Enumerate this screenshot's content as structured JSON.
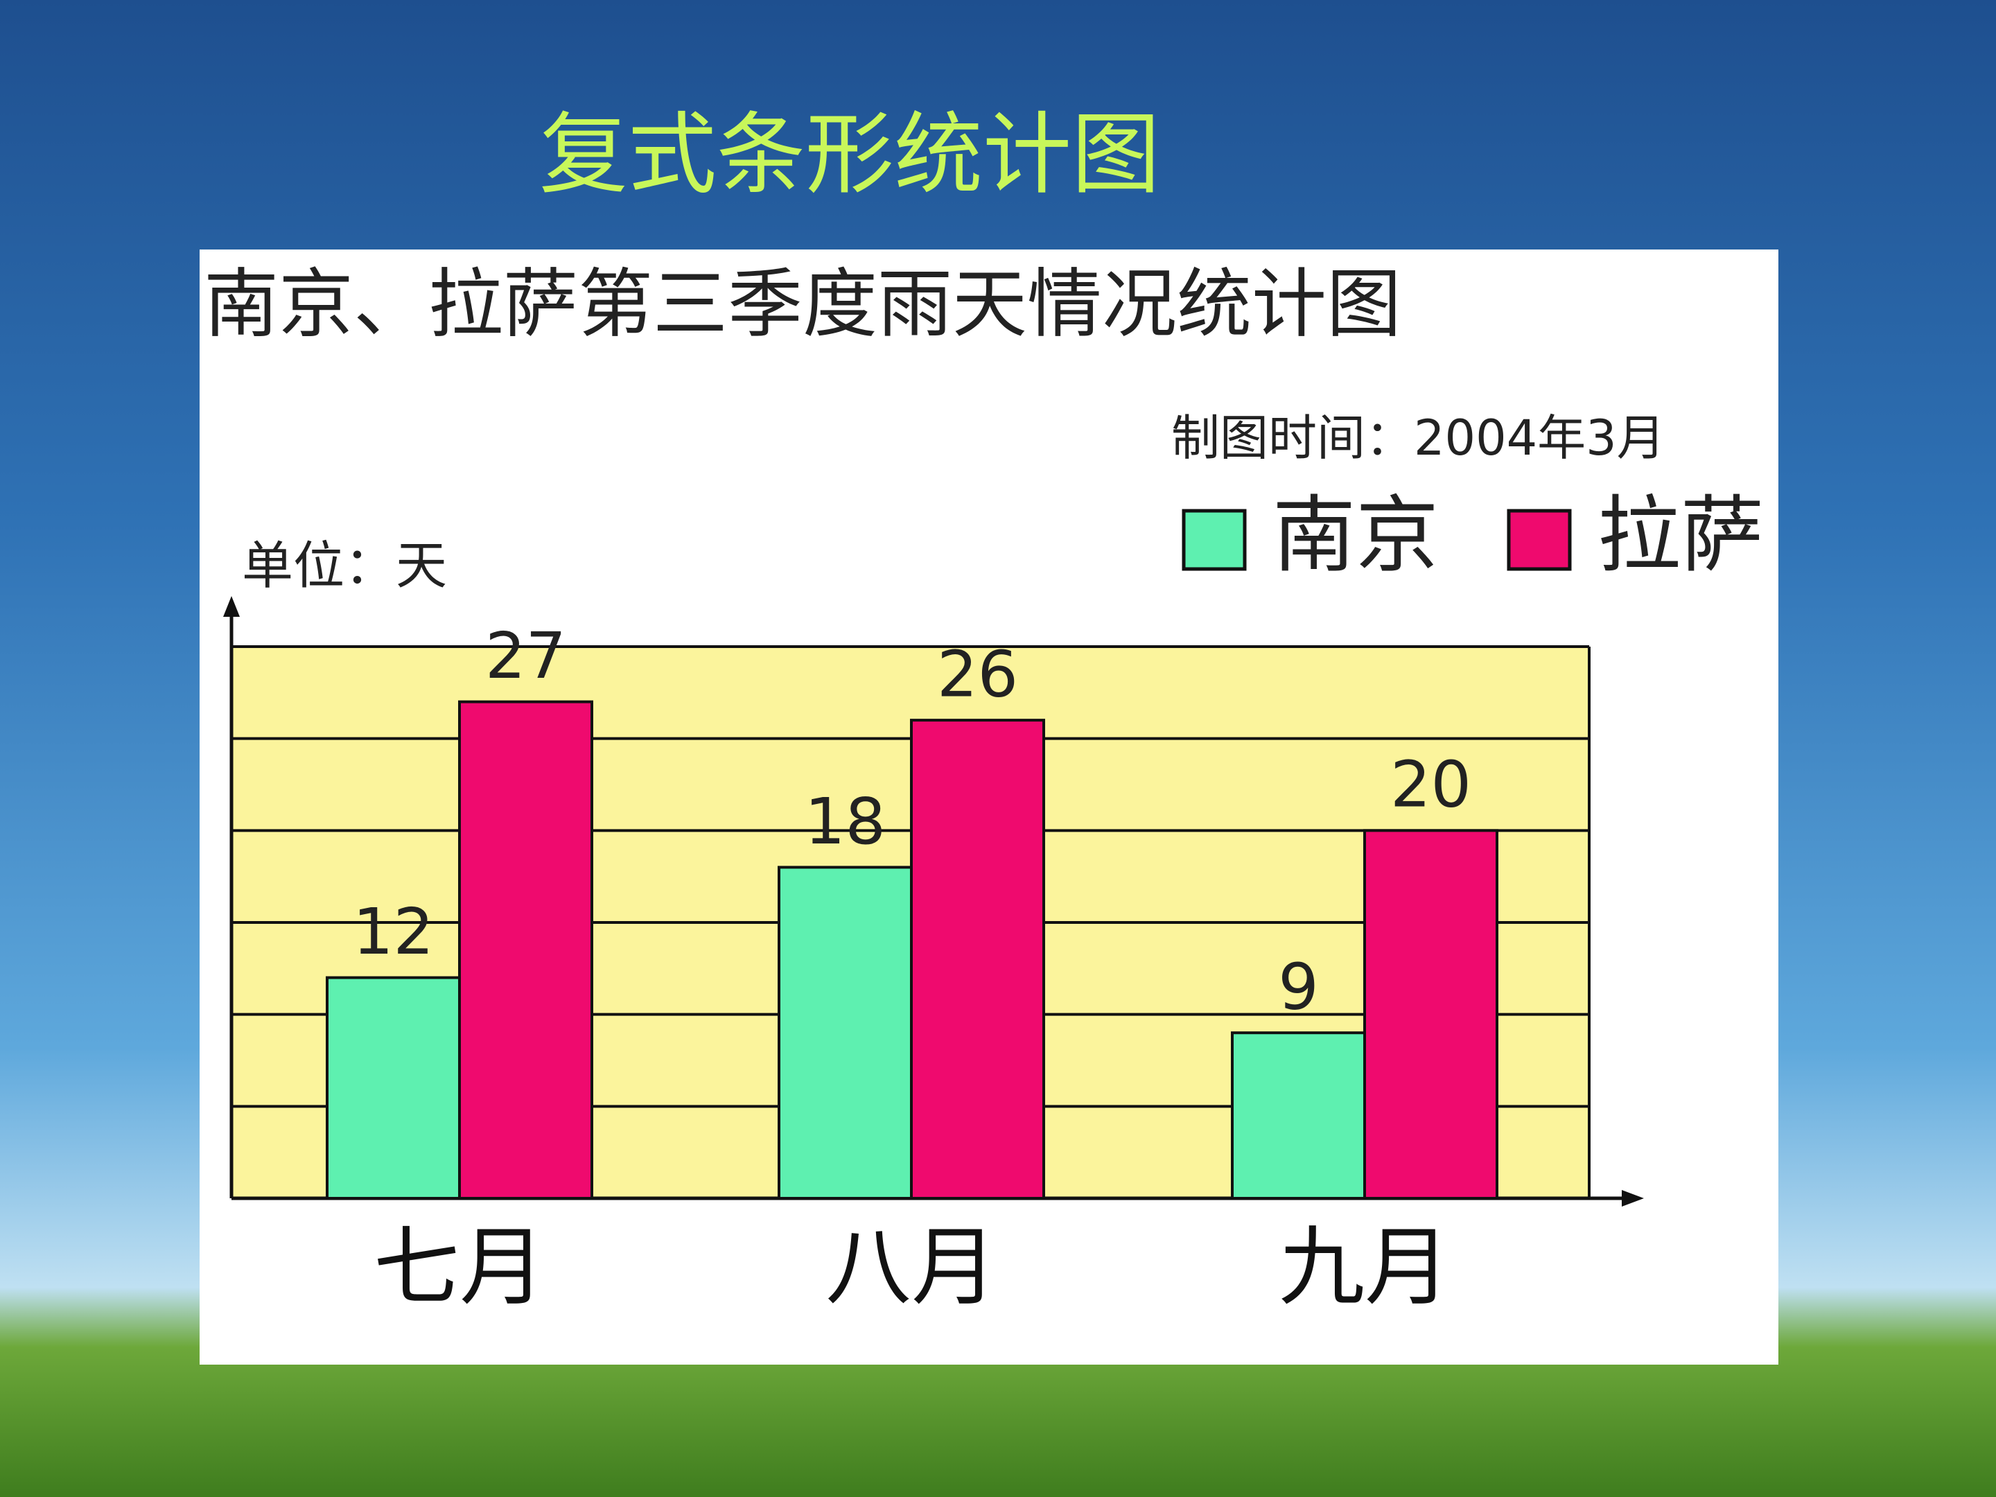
{
  "slide_title": "复式条形统计图",
  "chart_data": {
    "type": "bar",
    "title": "南京、拉萨第三季度雨天情况统计图",
    "subtitle": "制图时间：2004年3月",
    "y_label": "单位：天",
    "categories": [
      "七月",
      "八月",
      "九月"
    ],
    "series": [
      {
        "name": "南京",
        "color": "#5ef0b0",
        "values": [
          12,
          18,
          9
        ]
      },
      {
        "name": "拉萨",
        "color": "#ef0a6e",
        "values": [
          27,
          26,
          20
        ]
      }
    ],
    "ylim": [
      0,
      30
    ],
    "yticks": [
      0,
      5,
      10,
      15,
      20,
      25,
      30
    ],
    "grid": true,
    "show_values": true
  }
}
